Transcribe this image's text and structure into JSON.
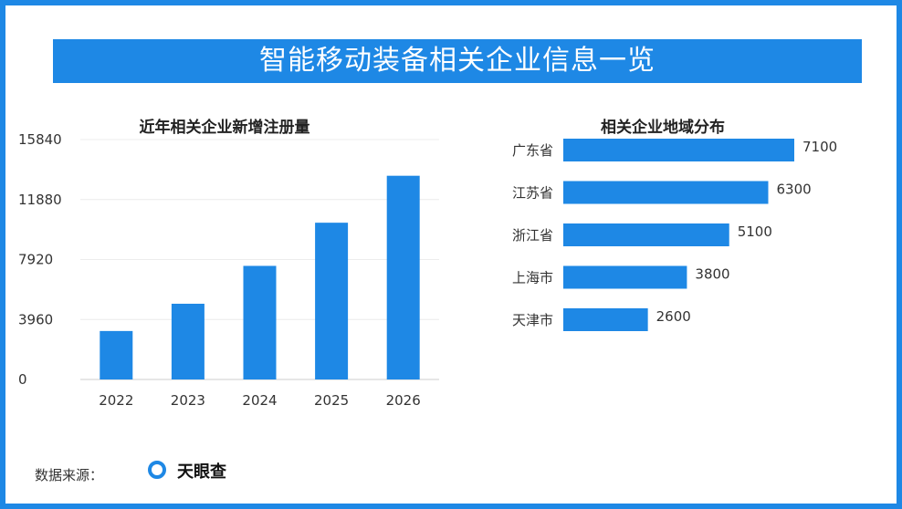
{
  "title": "智能移动装备相关企业信息一览",
  "footer": {
    "label": "数据来源：",
    "source": "天眼查"
  },
  "colors": {
    "accent": "#1e88e5",
    "grid": "#ececec",
    "axis": "#cccccc"
  },
  "chart_data": [
    {
      "type": "bar",
      "title": "近年相关企业新增注册量",
      "categories": [
        "2022",
        "2023",
        "2024",
        "2025",
        "2026"
      ],
      "values": [
        3200,
        5000,
        7500,
        10350,
        13450
      ],
      "ylim": [
        0,
        15840
      ],
      "yticks": [
        "0",
        "3960",
        "7920",
        "11880",
        "15840"
      ],
      "grid": true
    },
    {
      "type": "bar",
      "orientation": "horizontal",
      "title": "相关企业地域分布",
      "categories": [
        "广东省",
        "江苏省",
        "浙江省",
        "上海市",
        "天津市"
      ],
      "values": [
        7100,
        6300,
        5100,
        3800,
        2600
      ],
      "labels": [
        "7100",
        "6300",
        "5100",
        "3800",
        "2600"
      ]
    }
  ]
}
